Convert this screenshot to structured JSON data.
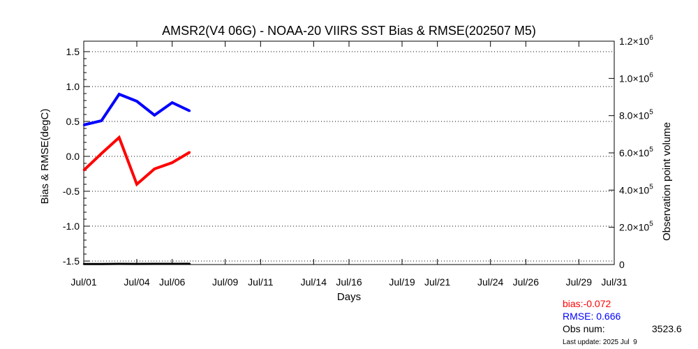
{
  "chart_data": {
    "type": "line",
    "title": "AMSR2(V4 06G) - NOAA-20 VIIRS SST Bias & RMSE(202507 M5)",
    "xlabel": "Days",
    "ylabel": "Bias & RMSE(degC)",
    "y2label": "Observation point volume",
    "xlim": [
      1,
      31
    ],
    "ylim": [
      -1.55,
      1.65
    ],
    "y2lim": [
      0,
      1200000
    ],
    "x_ticks": [
      {
        "day": 1,
        "label": "Jul/01"
      },
      {
        "day": 4,
        "label": "Jul/04"
      },
      {
        "day": 6,
        "label": "Jul/06"
      },
      {
        "day": 9,
        "label": "Jul/09"
      },
      {
        "day": 11,
        "label": "Jul/11"
      },
      {
        "day": 14,
        "label": "Jul/14"
      },
      {
        "day": 16,
        "label": "Jul/16"
      },
      {
        "day": 19,
        "label": "Jul/19"
      },
      {
        "day": 21,
        "label": "Jul/21"
      },
      {
        "day": 24,
        "label": "Jul/24"
      },
      {
        "day": 26,
        "label": "Jul/26"
      },
      {
        "day": 29,
        "label": "Jul/29"
      },
      {
        "day": 31,
        "label": "Jul/31"
      }
    ],
    "y_ticks": [
      {
        "value": 1.5,
        "label": "1.5"
      },
      {
        "value": 1.0,
        "label": "1.0"
      },
      {
        "value": 0.5,
        "label": "0.5"
      },
      {
        "value": 0.0,
        "label": "0.0"
      },
      {
        "value": -0.5,
        "label": "-0.5"
      },
      {
        "value": -1.0,
        "label": "-1.0"
      },
      {
        "value": -1.5,
        "label": "-1.5"
      }
    ],
    "y2_ticks": [
      {
        "value": 1200000,
        "mantissa": "1.2",
        "exponent": "6"
      },
      {
        "value": 1000000,
        "mantissa": "1.0",
        "exponent": "6"
      },
      {
        "value": 800000,
        "mantissa": "8.0",
        "exponent": "5"
      },
      {
        "value": 600000,
        "mantissa": "6.0",
        "exponent": "5"
      },
      {
        "value": 400000,
        "mantissa": "4.0",
        "exponent": "5"
      },
      {
        "value": 200000,
        "mantissa": "2.0",
        "exponent": "5"
      },
      {
        "value": 0,
        "mantissa": "0",
        "exponent": ""
      }
    ],
    "grid": "horizontal dotted",
    "series": [
      {
        "key": "bias",
        "axis": "left",
        "color": "#ff0000",
        "x": [
          1,
          2,
          3,
          4,
          5,
          6,
          7
        ],
        "y": [
          -0.2,
          0.04,
          0.27,
          -0.4,
          -0.18,
          -0.09,
          0.06
        ]
      },
      {
        "key": "rmse",
        "axis": "left",
        "color": "#0000ff",
        "x": [
          1,
          2,
          3,
          4,
          5,
          6,
          7
        ],
        "y": [
          0.45,
          0.51,
          0.89,
          0.79,
          0.59,
          0.77,
          0.65
        ]
      },
      {
        "key": "obs",
        "axis": "right",
        "color": "#000000",
        "x": [
          1,
          2,
          3,
          4,
          5,
          6,
          7
        ],
        "y": [
          2800,
          3100,
          3900,
          3500,
          3800,
          3600,
          4000
        ]
      }
    ]
  },
  "stats": {
    "bias_label": "bias:-0.072",
    "rmse_label": "RMSE: 0.666",
    "obs_label": "Obs num:",
    "obs_value": "3523.6"
  },
  "last_update": "Last update: 2025 Jul  9",
  "colors": {
    "bias": "#ff0000",
    "rmse": "#0000ff",
    "obs": "#000000",
    "grid": "#000000"
  }
}
